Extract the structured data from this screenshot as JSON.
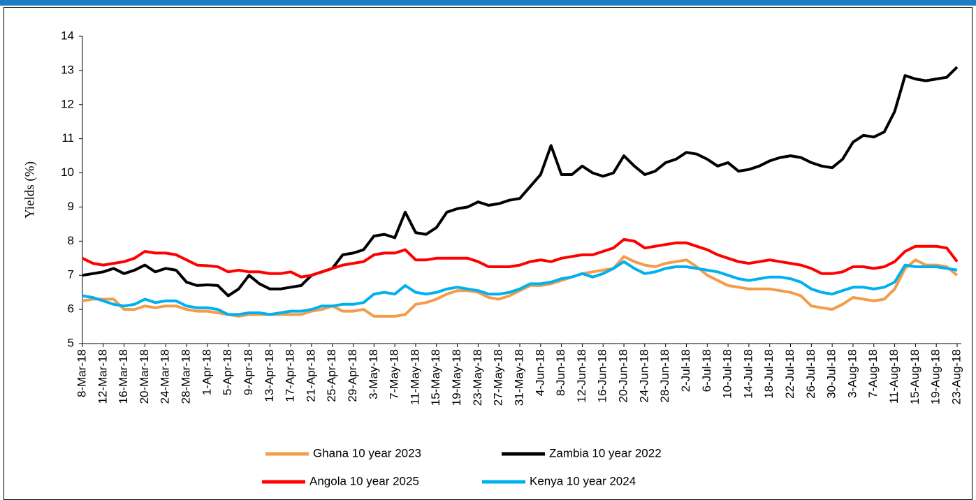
{
  "chart_data": {
    "type": "line",
    "y_label": "Yields (%)",
    "categories": [
      "8-Mar-18",
      null,
      "12-Mar-18",
      null,
      "16-Mar-18",
      null,
      "20-Mar-18",
      null,
      "24-Mar-18",
      null,
      "28-Mar-18",
      null,
      "1-Apr-18",
      null,
      "5-Apr-18",
      null,
      "9-Apr-18",
      null,
      "13-Apr-18",
      null,
      "17-Apr-18",
      null,
      "21-Apr-18",
      null,
      "25-Apr-18",
      null,
      "29-Apr-18",
      null,
      "3-May-18",
      null,
      "7-May-18",
      null,
      "11-May-18",
      null,
      "15-May-18",
      null,
      "19-May-18",
      null,
      "23-May-18",
      null,
      "27-May-18",
      null,
      "31-May-18",
      null,
      "4-Jun-18",
      null,
      "8-Jun-18",
      null,
      "12-Jun-18",
      null,
      "16-Jun-18",
      null,
      "20-Jun-18",
      null,
      "24-Jun-18",
      null,
      "28-Jun-18",
      null,
      "2-Jul-18",
      null,
      "6-Jul-18",
      null,
      "10-Jul-18",
      null,
      "14-Jul-18",
      null,
      "18-Jul-18",
      null,
      "22-Jul-18",
      null,
      "26-Jul-18",
      null,
      "30-Jul-18",
      null,
      "3-Aug-18",
      null,
      "7-Aug-18",
      null,
      "11-Aug-18",
      null,
      "15-Aug-18",
      null,
      "19-Aug-18",
      null,
      "23-Aug-18"
    ],
    "series": [
      {
        "name": "Ghana 10 year 2023",
        "color": "#f39c4a",
        "values": [
          6.25,
          6.3,
          6.3,
          6.3,
          6.0,
          6.0,
          6.1,
          6.05,
          6.1,
          6.1,
          6.0,
          5.95,
          5.95,
          5.9,
          5.85,
          5.8,
          5.85,
          5.85,
          5.85,
          5.85,
          5.85,
          5.85,
          5.95,
          6.0,
          6.1,
          5.95,
          5.95,
          6.0,
          5.8,
          5.8,
          5.8,
          5.85,
          6.15,
          6.2,
          6.3,
          6.45,
          6.55,
          6.55,
          6.5,
          6.35,
          6.3,
          6.4,
          6.55,
          6.7,
          6.7,
          6.75,
          6.85,
          6.95,
          7.05,
          7.1,
          7.15,
          7.2,
          7.55,
          7.4,
          7.3,
          7.25,
          7.35,
          7.4,
          7.45,
          7.25,
          7.0,
          6.85,
          6.7,
          6.65,
          6.6,
          6.6,
          6.6,
          6.55,
          6.5,
          6.4,
          6.1,
          6.05,
          6.0,
          6.15,
          6.35,
          6.3,
          6.25,
          6.3,
          6.6,
          7.2,
          7.45,
          7.3,
          7.3,
          7.25,
          7.0
        ]
      },
      {
        "name": "Zambia 10 year 2022",
        "color": "#000000",
        "values": [
          7.0,
          7.05,
          7.1,
          7.2,
          7.05,
          7.15,
          7.3,
          7.1,
          7.2,
          7.15,
          6.8,
          6.7,
          6.72,
          6.7,
          6.4,
          6.6,
          7.0,
          6.75,
          6.6,
          6.6,
          6.65,
          6.7,
          7.0,
          7.1,
          7.2,
          7.6,
          7.65,
          7.75,
          8.15,
          8.2,
          8.1,
          8.85,
          8.25,
          8.2,
          8.4,
          8.85,
          8.95,
          9.0,
          9.15,
          9.05,
          9.1,
          9.2,
          9.25,
          9.6,
          9.95,
          10.8,
          9.95,
          9.95,
          10.2,
          10.0,
          9.9,
          10.0,
          10.5,
          10.2,
          9.95,
          10.05,
          10.3,
          10.4,
          10.6,
          10.55,
          10.4,
          10.2,
          10.3,
          10.05,
          10.1,
          10.2,
          10.35,
          10.45,
          10.5,
          10.45,
          10.3,
          10.2,
          10.15,
          10.4,
          10.9,
          11.1,
          11.05,
          11.2,
          11.8,
          12.85,
          12.75,
          12.7,
          12.75,
          12.8,
          13.1
        ]
      },
      {
        "name": "Angola 10 year 2025",
        "color": "#ff0000",
        "values": [
          7.5,
          7.35,
          7.3,
          7.35,
          7.4,
          7.5,
          7.7,
          7.65,
          7.65,
          7.6,
          7.45,
          7.3,
          7.28,
          7.25,
          7.1,
          7.15,
          7.1,
          7.1,
          7.05,
          7.05,
          7.1,
          6.95,
          7.0,
          7.1,
          7.2,
          7.3,
          7.35,
          7.4,
          7.6,
          7.65,
          7.65,
          7.75,
          7.45,
          7.45,
          7.5,
          7.5,
          7.5,
          7.5,
          7.4,
          7.25,
          7.25,
          7.25,
          7.3,
          7.4,
          7.45,
          7.4,
          7.5,
          7.55,
          7.6,
          7.6,
          7.7,
          7.8,
          8.05,
          8.0,
          7.8,
          7.85,
          7.9,
          7.95,
          7.95,
          7.85,
          7.75,
          7.6,
          7.5,
          7.4,
          7.35,
          7.4,
          7.45,
          7.4,
          7.35,
          7.3,
          7.2,
          7.05,
          7.05,
          7.1,
          7.25,
          7.25,
          7.2,
          7.25,
          7.4,
          7.7,
          7.85,
          7.85,
          7.85,
          7.8,
          7.4
        ]
      },
      {
        "name": "Kenya 10 year 2024",
        "color": "#00b0f0",
        "values": [
          6.4,
          6.35,
          6.25,
          6.15,
          6.1,
          6.15,
          6.3,
          6.2,
          6.25,
          6.25,
          6.1,
          6.05,
          6.05,
          6.0,
          5.85,
          5.85,
          5.9,
          5.9,
          5.85,
          5.9,
          5.95,
          5.95,
          6.0,
          6.1,
          6.1,
          6.15,
          6.15,
          6.2,
          6.45,
          6.5,
          6.45,
          6.7,
          6.5,
          6.45,
          6.5,
          6.6,
          6.65,
          6.6,
          6.55,
          6.45,
          6.45,
          6.5,
          6.6,
          6.75,
          6.75,
          6.8,
          6.9,
          6.95,
          7.05,
          6.95,
          7.05,
          7.2,
          7.4,
          7.2,
          7.05,
          7.1,
          7.2,
          7.25,
          7.25,
          7.2,
          7.15,
          7.1,
          7.0,
          6.9,
          6.85,
          6.9,
          6.95,
          6.95,
          6.9,
          6.8,
          6.6,
          6.5,
          6.45,
          6.55,
          6.65,
          6.65,
          6.6,
          6.65,
          6.8,
          7.3,
          7.25,
          7.25,
          7.25,
          7.2,
          7.15
        ]
      }
    ],
    "ylim": [
      5,
      14
    ],
    "yticks": [
      5,
      6,
      7,
      8,
      9,
      10,
      11,
      12,
      13,
      14
    ],
    "grid": false
  }
}
